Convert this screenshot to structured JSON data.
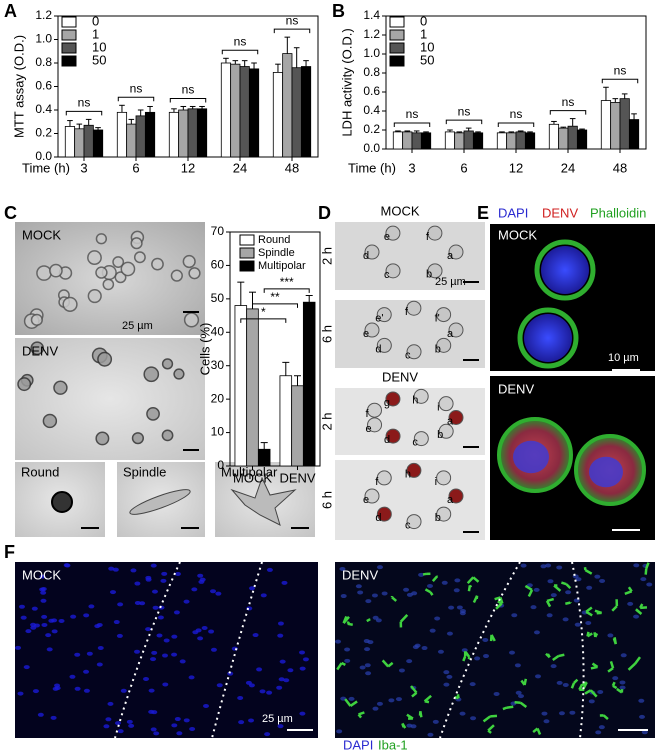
{
  "panels": {
    "labels": [
      "A",
      "B",
      "C",
      "D",
      "E",
      "F"
    ]
  },
  "chart_data": [
    {
      "type": "bar",
      "y_label": "MTT assay (O.D.)",
      "x_label": "Time (h)",
      "categories": [
        "3",
        "6",
        "12",
        "24",
        "48"
      ],
      "ylim": [
        0,
        1.2
      ],
      "yticks": [
        {
          "value": 0,
          "label": "0.0"
        },
        0.2,
        0.4,
        0.6,
        0.8,
        {
          "value": 1,
          "label": "1.0"
        },
        1.2
      ],
      "legend": "upper left",
      "series": [
        {
          "name": "0",
          "color": "#ffffff",
          "values": [
            0.26,
            0.38,
            0.38,
            0.8,
            0.72
          ],
          "errors": [
            0.05,
            0.06,
            0.03,
            0.04,
            0.07
          ]
        },
        {
          "name": "1",
          "color": "#a6a6a6",
          "values": [
            0.24,
            0.28,
            0.4,
            0.79,
            0.88
          ],
          "errors": [
            0.04,
            0.04,
            0.03,
            0.03,
            0.14
          ]
        },
        {
          "name": "10",
          "color": "#555555",
          "values": [
            0.27,
            0.35,
            0.41,
            0.77,
            0.76
          ],
          "errors": [
            0.05,
            0.05,
            0.02,
            0.05,
            0.17
          ]
        },
        {
          "name": "50",
          "color": "#000000",
          "values": [
            0.23,
            0.38,
            0.41,
            0.75,
            0.77
          ],
          "errors": [
            0.02,
            0.05,
            0.02,
            0.05,
            0.05
          ]
        }
      ],
      "annotations": [
        "ns",
        "ns",
        "ns",
        "ns",
        "ns"
      ]
    },
    {
      "type": "bar",
      "y_label": "LDH activity (O.D.)",
      "x_label": "Time (h)",
      "categories": [
        "3",
        "6",
        "12",
        "24",
        "48"
      ],
      "ylim": [
        0,
        1.4
      ],
      "yticks": [
        {
          "value": 0,
          "label": "0.0"
        },
        0.2,
        0.4,
        0.6,
        0.8,
        {
          "value": 1,
          "label": "1.0"
        },
        1.2,
        1.4
      ],
      "legend": "upper left",
      "series": [
        {
          "name": "0",
          "color": "#ffffff",
          "values": [
            0.18,
            0.18,
            0.17,
            0.26,
            0.51
          ],
          "errors": [
            0.01,
            0.02,
            0.01,
            0.03,
            0.14
          ]
        },
        {
          "name": "1",
          "color": "#a6a6a6",
          "values": [
            0.18,
            0.17,
            0.17,
            0.22,
            0.49
          ],
          "errors": [
            0.01,
            0.01,
            0.01,
            0.01,
            0.04
          ]
        },
        {
          "name": "10",
          "color": "#555555",
          "values": [
            0.17,
            0.19,
            0.18,
            0.24,
            0.53
          ],
          "errors": [
            0.02,
            0.03,
            0.01,
            0.08,
            0.05
          ]
        },
        {
          "name": "50",
          "color": "#000000",
          "values": [
            0.17,
            0.17,
            0.17,
            0.2,
            0.31
          ],
          "errors": [
            0.01,
            0.01,
            0.01,
            0.01,
            0.06
          ]
        }
      ],
      "annotations": [
        "ns",
        "ns",
        "ns",
        "ns",
        "ns"
      ]
    },
    {
      "type": "bar",
      "y_label": "Cells (%)",
      "categories": [
        "MOCK",
        "DENV"
      ],
      "ylim": [
        0,
        70
      ],
      "yticks": [
        0,
        10,
        20,
        30,
        40,
        50,
        60,
        70
      ],
      "legend": "upper right",
      "series": [
        {
          "name": "Round",
          "color": "#ffffff",
          "values": [
            48,
            27
          ],
          "errors": [
            7,
            4
          ]
        },
        {
          "name": "Spindle",
          "color": "#a6a6a6",
          "values": [
            47,
            24
          ],
          "errors": [
            5,
            3
          ]
        },
        {
          "name": "Multipolar",
          "color": "#000000",
          "values": [
            5,
            49
          ],
          "errors": [
            2,
            2
          ]
        }
      ],
      "annotations": [
        "*",
        "**",
        "***"
      ]
    }
  ],
  "panel_c": {
    "images": [
      "MOCK",
      "DENV"
    ],
    "scale": "25 µm",
    "morphologies": [
      "Round",
      "Spindle",
      "Multipolar"
    ]
  },
  "panel_d": {
    "groups": [
      "MOCK",
      "DENV"
    ],
    "times": [
      "2 h",
      "6 h",
      "2 h",
      "6 h"
    ],
    "scale": "25 µm",
    "cell_labels": [
      [
        "a",
        "b",
        "c",
        "d",
        "e",
        "f"
      ],
      [
        "a",
        "b",
        "c",
        "d",
        "e",
        "e'",
        "f",
        "f'"
      ],
      [
        "a",
        "b",
        "c",
        "d",
        "e",
        "f",
        "g",
        "h",
        "i"
      ],
      [
        "a",
        "b",
        "c",
        "d",
        "e",
        "f",
        "h",
        "i"
      ]
    ]
  },
  "panel_e": {
    "channels": [
      "DAPI",
      "DENV",
      "Phalloidin"
    ],
    "images": [
      "MOCK",
      "DENV"
    ],
    "scale": "10 µm"
  },
  "panel_f": {
    "images": [
      "MOCK",
      "DENV"
    ],
    "scale": "25 µm",
    "channels": [
      "DAPI",
      "Iba-1"
    ]
  }
}
